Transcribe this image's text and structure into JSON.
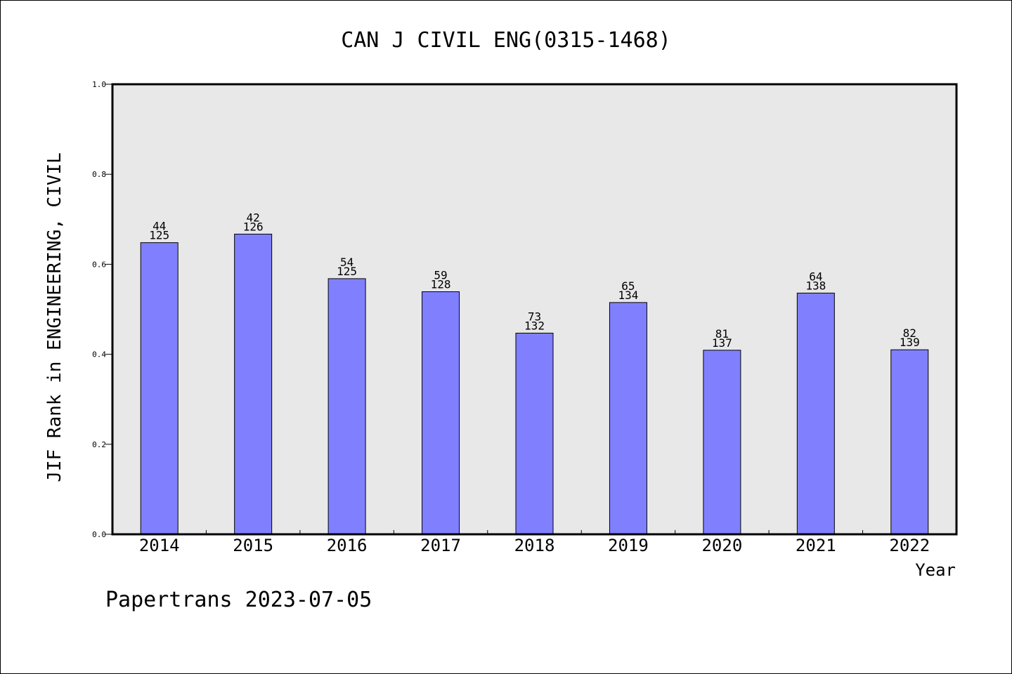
{
  "chart_data": {
    "type": "bar",
    "title": "CAN J CIVIL ENG(0315-1468)",
    "xlabel": "Year",
    "ylabel": "JIF Rank in ENGINEERING, CIVIL",
    "ylim": [
      0,
      1.0
    ],
    "yticks": [
      "0.0",
      "0.2",
      "0.4",
      "0.6",
      "0.8",
      "1.0"
    ],
    "categories": [
      "2014",
      "2015",
      "2016",
      "2017",
      "2018",
      "2019",
      "2020",
      "2021",
      "2022"
    ],
    "values": [
      0.648,
      0.667,
      0.568,
      0.539,
      0.447,
      0.515,
      0.409,
      0.536,
      0.41
    ],
    "ranks": [
      "44",
      "42",
      "54",
      "59",
      "73",
      "65",
      "81",
      "64",
      "82"
    ],
    "totals": [
      "125",
      "126",
      "125",
      "128",
      "132",
      "134",
      "137",
      "138",
      "139"
    ],
    "grid": false,
    "colors": {
      "bar": "#8080ff",
      "plot_bg": "#e8e8e8"
    }
  },
  "footer": {
    "text": "Papertrans 2023-07-05"
  }
}
